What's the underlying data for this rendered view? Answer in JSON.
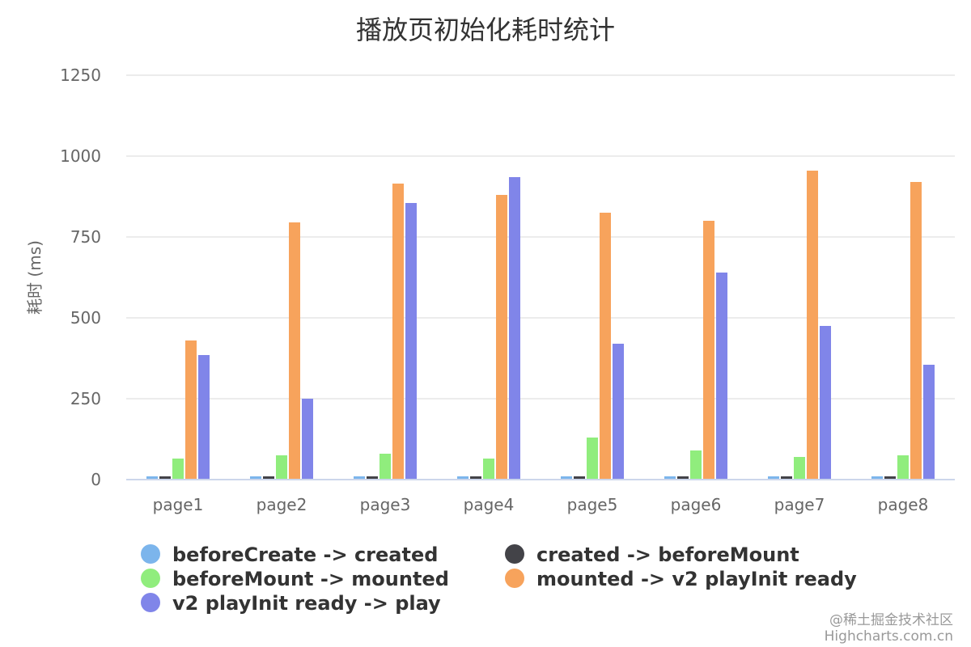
{
  "chart_data": {
    "type": "bar",
    "title": "播放页初始化耗时统计",
    "ylabel": "耗时 (ms)",
    "xlabel": "",
    "ylim": [
      0,
      1250
    ],
    "yticks": [
      0,
      250,
      500,
      750,
      1000,
      1250
    ],
    "grid": true,
    "legend_position": "bottom",
    "categories": [
      "page1",
      "page2",
      "page3",
      "page4",
      "page5",
      "page6",
      "page7",
      "page8"
    ],
    "series": [
      {
        "name": "beforeCreate -> created",
        "color": "#7cb5ec",
        "values": [
          10,
          10,
          10,
          10,
          10,
          10,
          10,
          10
        ]
      },
      {
        "name": "created -> beforeMount",
        "color": "#434348",
        "values": [
          10,
          10,
          10,
          10,
          10,
          10,
          10,
          10
        ]
      },
      {
        "name": "beforeMount -> mounted",
        "color": "#90ed7d",
        "values": [
          65,
          75,
          80,
          65,
          130,
          90,
          70,
          75
        ]
      },
      {
        "name": "mounted -> v2 playInit ready",
        "color": "#f7a35c",
        "values": [
          430,
          795,
          915,
          880,
          825,
          800,
          955,
          920
        ]
      },
      {
        "name": "v2 playInit ready -> play",
        "color": "#8085e9",
        "values": [
          385,
          250,
          855,
          935,
          420,
          640,
          475,
          355
        ]
      }
    ]
  },
  "credits": {
    "line1": "@稀土掘金技术社区",
    "line2": "Highcharts.com.cn"
  }
}
